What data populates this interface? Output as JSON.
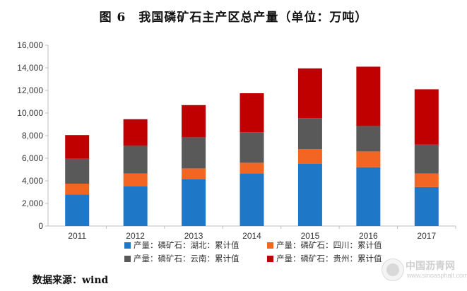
{
  "chart_data": {
    "type": "bar",
    "stacked": true,
    "title": "图 6　我国磷矿石主产区总产量（单位：万吨）",
    "categories": [
      "2011",
      "2012",
      "2013",
      "2014",
      "2015",
      "2016",
      "2017"
    ],
    "ylim": [
      0,
      16000
    ],
    "yticks": [
      "0",
      "2,000",
      "4,000",
      "6,000",
      "8,000",
      "10,000",
      "12,000",
      "14,000",
      "16,000"
    ],
    "grid": false,
    "legend_position": "bottom",
    "series": [
      {
        "name": "产量：磷矿石：湖北：累计值",
        "color": "#1f77c8",
        "values": [
          2800,
          3500,
          4150,
          4650,
          5500,
          5200,
          3450
        ]
      },
      {
        "name": "产量：磷矿石：四川：累计值",
        "color": "#f26522",
        "values": [
          950,
          1150,
          950,
          950,
          1300,
          1400,
          1200
        ]
      },
      {
        "name": "产量：磷矿石：云南：累计值",
        "color": "#595959",
        "values": [
          2200,
          2450,
          2750,
          2700,
          2750,
          2250,
          2550
        ]
      },
      {
        "name": "产量：磷矿石：贵州：累计值",
        "color": "#c00000",
        "values": [
          2100,
          2350,
          2850,
          3450,
          4400,
          5250,
          4900
        ]
      }
    ]
  },
  "source": "数据来源：wind",
  "watermark": {
    "name": "中国沥青网",
    "url": "www.sinoasphalt.com"
  }
}
